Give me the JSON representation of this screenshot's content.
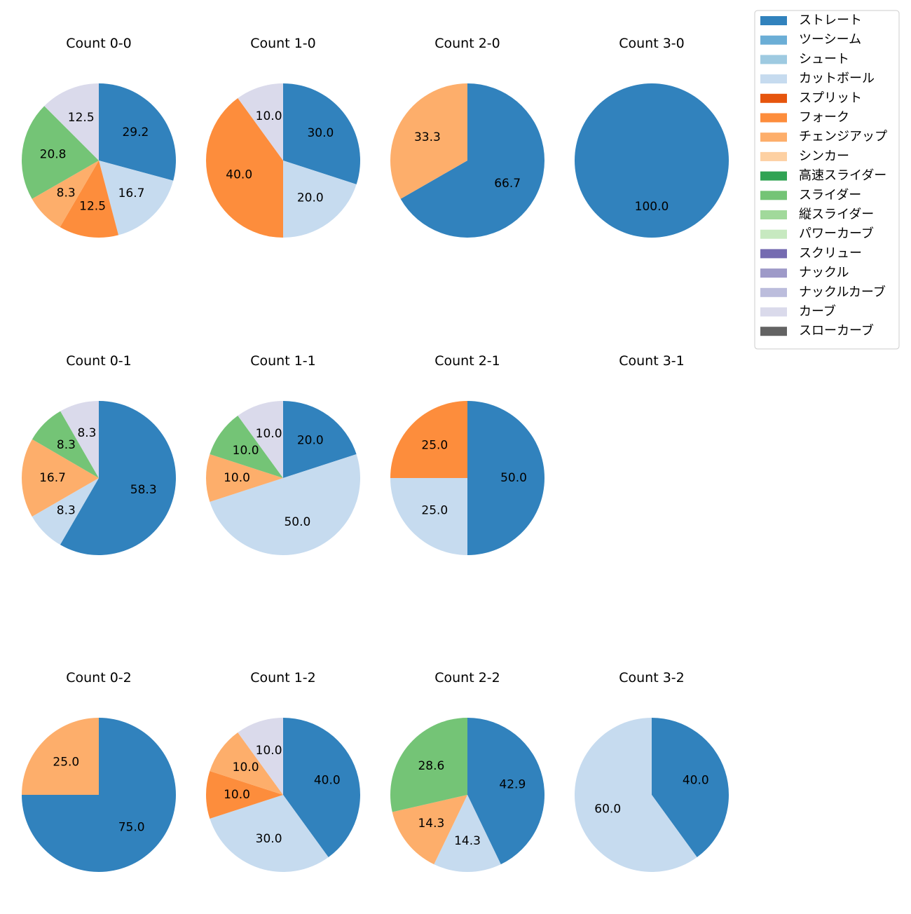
{
  "chart_data": {
    "type": "pie",
    "legend": {
      "placement": "top-right",
      "entries": [
        {
          "name": "ストレート",
          "color": "#3182bd"
        },
        {
          "name": "ツーシーム",
          "color": "#6baed6"
        },
        {
          "name": "シュート",
          "color": "#9ecae1"
        },
        {
          "name": "カットボール",
          "color": "#c6dbef"
        },
        {
          "name": "スプリット",
          "color": "#e6550d"
        },
        {
          "name": "フォーク",
          "color": "#fd8d3c"
        },
        {
          "name": "チェンジアップ",
          "color": "#fdae6b"
        },
        {
          "name": "シンカー",
          "color": "#fdd0a2"
        },
        {
          "name": "高速スライダー",
          "color": "#31a354"
        },
        {
          "name": "スライダー",
          "color": "#74c476"
        },
        {
          "name": "縦スライダー",
          "color": "#a1d99b"
        },
        {
          "name": "パワーカーブ",
          "color": "#c7e9c0"
        },
        {
          "name": "スクリュー",
          "color": "#756bb1"
        },
        {
          "name": "ナックル",
          "color": "#9e9ac8"
        },
        {
          "name": "ナックルカーブ",
          "color": "#bcbddc"
        },
        {
          "name": "カーブ",
          "color": "#dadaeb"
        },
        {
          "name": "スローカーブ",
          "color": "#636363"
        }
      ]
    },
    "pies": [
      {
        "title": "Count 0-0",
        "slices": [
          {
            "pitch": "ストレート",
            "value": 29.2,
            "label": "29.2"
          },
          {
            "pitch": "カットボール",
            "value": 16.7,
            "label": "16.7"
          },
          {
            "pitch": "フォーク",
            "value": 12.5,
            "label": "12.5"
          },
          {
            "pitch": "チェンジアップ",
            "value": 8.3,
            "label": "8.3"
          },
          {
            "pitch": "スライダー",
            "value": 20.8,
            "label": "20.8"
          },
          {
            "pitch": "カーブ",
            "value": 12.5,
            "label": "12.5"
          }
        ]
      },
      {
        "title": "Count 1-0",
        "slices": [
          {
            "pitch": "ストレート",
            "value": 30.0,
            "label": "30.0"
          },
          {
            "pitch": "カットボール",
            "value": 20.0,
            "label": "20.0"
          },
          {
            "pitch": "フォーク",
            "value": 40.0,
            "label": "40.0"
          },
          {
            "pitch": "カーブ",
            "value": 10.0,
            "label": "10.0"
          }
        ]
      },
      {
        "title": "Count 2-0",
        "slices": [
          {
            "pitch": "ストレート",
            "value": 66.7,
            "label": "66.7"
          },
          {
            "pitch": "チェンジアップ",
            "value": 33.3,
            "label": "33.3"
          }
        ]
      },
      {
        "title": "Count 3-0",
        "slices": [
          {
            "pitch": "ストレート",
            "value": 100.0,
            "label": "100.0"
          }
        ]
      },
      {
        "title": "Count 0-1",
        "slices": [
          {
            "pitch": "ストレート",
            "value": 58.3,
            "label": "58.3"
          },
          {
            "pitch": "カットボール",
            "value": 8.3,
            "label": "8.3"
          },
          {
            "pitch": "チェンジアップ",
            "value": 16.7,
            "label": "16.7"
          },
          {
            "pitch": "スライダー",
            "value": 8.3,
            "label": "8.3"
          },
          {
            "pitch": "カーブ",
            "value": 8.3,
            "label": "8.3"
          }
        ]
      },
      {
        "title": "Count 1-1",
        "slices": [
          {
            "pitch": "ストレート",
            "value": 20.0,
            "label": "20.0"
          },
          {
            "pitch": "カットボール",
            "value": 50.0,
            "label": "50.0"
          },
          {
            "pitch": "チェンジアップ",
            "value": 10.0,
            "label": "10.0"
          },
          {
            "pitch": "スライダー",
            "value": 10.0,
            "label": "10.0"
          },
          {
            "pitch": "カーブ",
            "value": 10.0,
            "label": "10.0"
          }
        ]
      },
      {
        "title": "Count 2-1",
        "slices": [
          {
            "pitch": "ストレート",
            "value": 50.0,
            "label": "50.0"
          },
          {
            "pitch": "カットボール",
            "value": 25.0,
            "label": "25.0"
          },
          {
            "pitch": "フォーク",
            "value": 25.0,
            "label": "25.0"
          }
        ]
      },
      {
        "title": "Count 3-1",
        "slices": []
      },
      {
        "title": "Count 0-2",
        "slices": [
          {
            "pitch": "ストレート",
            "value": 75.0,
            "label": "75.0"
          },
          {
            "pitch": "チェンジアップ",
            "value": 25.0,
            "label": "25.0"
          }
        ]
      },
      {
        "title": "Count 1-2",
        "slices": [
          {
            "pitch": "ストレート",
            "value": 40.0,
            "label": "40.0"
          },
          {
            "pitch": "カットボール",
            "value": 30.0,
            "label": "30.0"
          },
          {
            "pitch": "フォーク",
            "value": 10.0,
            "label": "10.0"
          },
          {
            "pitch": "チェンジアップ",
            "value": 10.0,
            "label": "10.0"
          },
          {
            "pitch": "カーブ",
            "value": 10.0,
            "label": "10.0"
          }
        ]
      },
      {
        "title": "Count 2-2",
        "slices": [
          {
            "pitch": "ストレート",
            "value": 42.9,
            "label": "42.9"
          },
          {
            "pitch": "カットボール",
            "value": 14.3,
            "label": "14.3"
          },
          {
            "pitch": "チェンジアップ",
            "value": 14.3,
            "label": "14.3"
          },
          {
            "pitch": "スライダー",
            "value": 28.6,
            "label": "28.6"
          }
        ]
      },
      {
        "title": "Count 3-2",
        "slices": [
          {
            "pitch": "ストレート",
            "value": 40.0,
            "label": "40.0"
          },
          {
            "pitch": "カットボール",
            "value": 60.0,
            "label": "60.0"
          }
        ]
      }
    ]
  }
}
